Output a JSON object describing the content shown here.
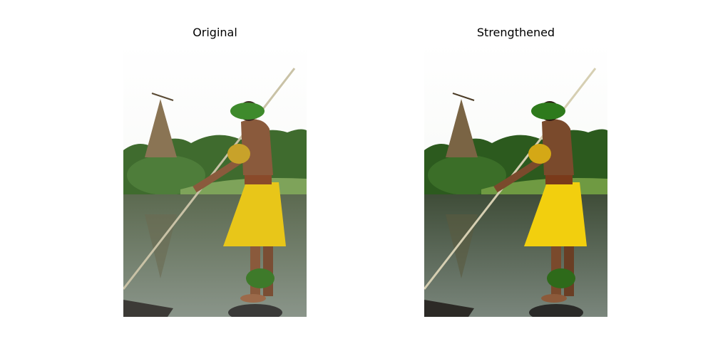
{
  "panels": [
    {
      "title": "Original"
    },
    {
      "title": "Strengthened"
    }
  ]
}
